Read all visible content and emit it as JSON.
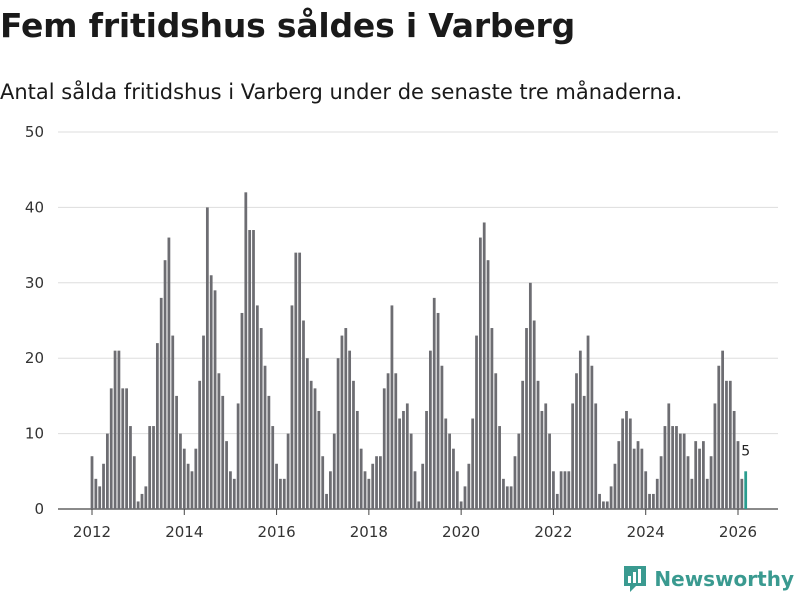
{
  "chart_data": {
    "type": "bar",
    "title": "Fem fritidshus såldes i Varberg",
    "subtitle": "Antal sålda fritidshus i Varberg under de senaste tre månaderna.",
    "xlabel": "",
    "ylabel": "",
    "ylim": [
      0,
      50
    ],
    "yticks": [
      "0",
      "10",
      "20",
      "30",
      "40",
      "50"
    ],
    "xticks": [
      "2012",
      "2014",
      "2016",
      "2018",
      "2020",
      "2022",
      "2024",
      "2026"
    ],
    "start_year": 2012,
    "months_per_bar": 1,
    "values": [
      7,
      4,
      3,
      6,
      10,
      16,
      21,
      21,
      16,
      16,
      11,
      7,
      1,
      2,
      3,
      11,
      11,
      22,
      28,
      33,
      36,
      23,
      15,
      10,
      8,
      6,
      5,
      8,
      17,
      23,
      40,
      31,
      29,
      18,
      15,
      9,
      5,
      4,
      14,
      26,
      42,
      37,
      37,
      27,
      24,
      19,
      15,
      11,
      6,
      4,
      4,
      10,
      27,
      34,
      34,
      25,
      20,
      17,
      16,
      13,
      7,
      2,
      5,
      10,
      20,
      23,
      24,
      21,
      17,
      13,
      8,
      5,
      4,
      6,
      7,
      7,
      16,
      18,
      27,
      18,
      12,
      13,
      14,
      10,
      5,
      1,
      6,
      13,
      21,
      28,
      26,
      19,
      12,
      10,
      8,
      5,
      1,
      3,
      6,
      12,
      23,
      36,
      38,
      33,
      24,
      18,
      11,
      4,
      3,
      3,
      7,
      10,
      17,
      24,
      30,
      25,
      17,
      13,
      14,
      10,
      5,
      2,
      5,
      5,
      5,
      14,
      18,
      21,
      15,
      23,
      19,
      14,
      2,
      1,
      1,
      3,
      6,
      9,
      12,
      13,
      12,
      8,
      9,
      8,
      5,
      2,
      2,
      4,
      7,
      11,
      14,
      11,
      11,
      10,
      10,
      7,
      4,
      9,
      8,
      9,
      4,
      7,
      14,
      19,
      21,
      17,
      17,
      13,
      9,
      4,
      5
    ],
    "highlight_last": true,
    "last_label": "5",
    "bar_color": "#6d6d72",
    "highlight_color": "#2a9d8f",
    "grid": true
  },
  "brand": {
    "name": "Newsworthy",
    "color": "#3a9a90",
    "icon": "newsworthy-logo-icon"
  }
}
